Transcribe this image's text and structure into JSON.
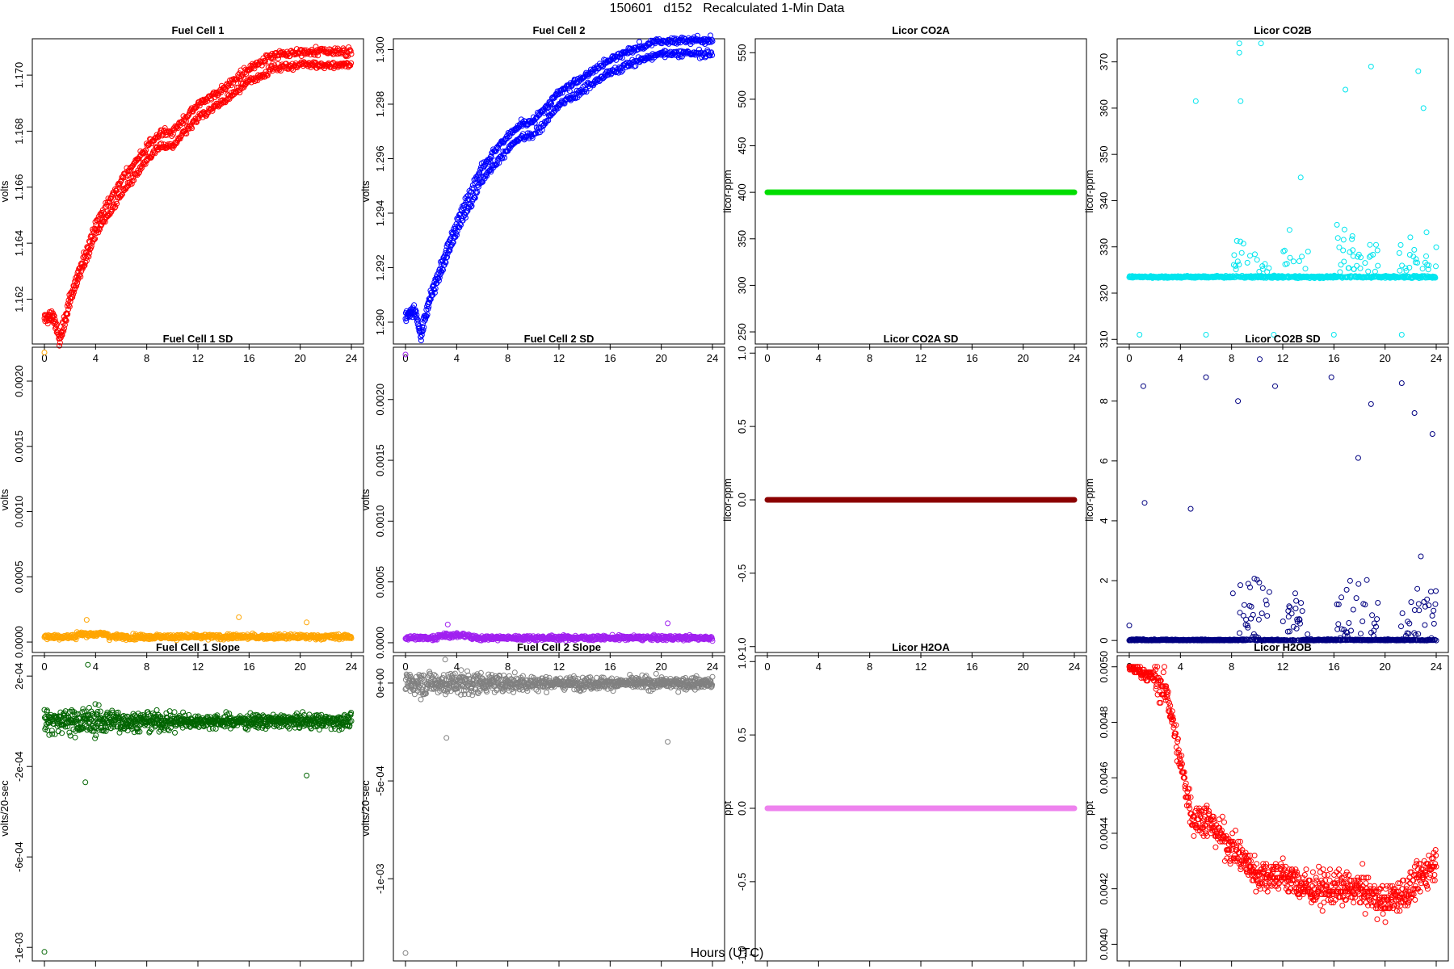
{
  "figure": {
    "title": "150601   d152   Recalculated 1-Min Data",
    "xlabel": "Hours (UTC)"
  },
  "chart_data": [
    {
      "type": "scatter",
      "title": "Fuel Cell 1",
      "ylabel": "volts",
      "color": "#ff0000",
      "xlim": [
        0,
        24
      ],
      "xticks": [
        "0",
        "4",
        "8",
        "12",
        "16",
        "20",
        "24"
      ],
      "ylim": [
        1.1604,
        1.1713
      ],
      "yticks": [
        "1.162",
        "1.164",
        "1.166",
        "1.168",
        "1.170"
      ],
      "series": {
        "model": "band",
        "x": [
          0,
          0.7,
          1.2,
          2,
          4,
          6,
          8,
          9,
          10,
          12,
          14,
          16,
          18,
          20,
          24
        ],
        "y": [
          1.1613,
          1.1614,
          1.1605,
          1.162,
          1.1645,
          1.166,
          1.1672,
          1.1677,
          1.1677,
          1.1687,
          1.1693,
          1.17,
          1.1705,
          1.1706,
          1.1706
        ],
        "spread": 0.0008
      }
    },
    {
      "type": "scatter",
      "title": "Fuel Cell 2",
      "ylabel": "volts",
      "color": "#0000ff",
      "xlim": [
        0,
        24
      ],
      "xticks": [
        "0",
        "4",
        "8",
        "12",
        "16",
        "20",
        "24"
      ],
      "ylim": [
        1.2892,
        1.3004
      ],
      "yticks": [
        "1.290",
        "1.292",
        "1.294",
        "1.296",
        "1.298",
        "1.300"
      ],
      "series": {
        "model": "band",
        "x": [
          0,
          0.7,
          1.2,
          2,
          4,
          6,
          8,
          9,
          10,
          12,
          14,
          16,
          18,
          20,
          24
        ],
        "y": [
          1.2902,
          1.2905,
          1.2895,
          1.291,
          1.2935,
          1.2955,
          1.2966,
          1.297,
          1.2971,
          1.2982,
          1.2988,
          1.2994,
          1.2998,
          1.3001,
          1.3001
        ],
        "spread": 0.0008
      }
    },
    {
      "type": "scatter",
      "title": "Licor CO2A",
      "ylabel": "licor-ppm",
      "color": "#00dd00",
      "xlim": [
        0,
        24
      ],
      "xticks": [
        "0",
        "4",
        "8",
        "12",
        "16",
        "20",
        "24"
      ],
      "ylim": [
        237,
        565
      ],
      "yticks": [
        "250",
        "300",
        "350",
        "400",
        "450",
        "500",
        "550"
      ],
      "series": {
        "model": "flat",
        "value": 400
      }
    },
    {
      "type": "scatter",
      "title": "Licor CO2B",
      "ylabel": "licor-ppm",
      "color": "#00e5ee",
      "xlim": [
        0,
        24
      ],
      "xticks": [
        "0",
        "4",
        "8",
        "12",
        "16",
        "20",
        "24"
      ],
      "ylim": [
        309,
        375
      ],
      "yticks": [
        "310",
        "320",
        "330",
        "340",
        "350",
        "360",
        "370"
      ],
      "series": {
        "model": "noisy",
        "base": 323.5,
        "spikes": [
          [
            8.6,
            374
          ],
          [
            8.6,
            372
          ],
          [
            10.3,
            374
          ],
          [
            5.2,
            361.5
          ],
          [
            8.7,
            361.5
          ],
          [
            13.4,
            345
          ],
          [
            16.9,
            364
          ],
          [
            18.9,
            369
          ],
          [
            22.6,
            368
          ],
          [
            23,
            360
          ],
          [
            0.8,
            311
          ],
          [
            6,
            311
          ],
          [
            11.3,
            311
          ],
          [
            16,
            311
          ],
          [
            21.3,
            311
          ]
        ],
        "busy": [
          [
            8,
            11
          ],
          [
            12,
            14
          ],
          [
            16,
            19.5
          ],
          [
            21,
            24
          ]
        ]
      }
    },
    {
      "type": "scatter",
      "title": "Fuel Cell 1 SD",
      "ylabel": "volts",
      "color": "#ffa500",
      "xlim": [
        0,
        24
      ],
      "xticks": [
        "0",
        "4",
        "8",
        "12",
        "16",
        "20",
        "24"
      ],
      "ylim": [
        -8e-05,
        0.00226
      ],
      "yticks": [
        "0.0000",
        "0.0005",
        "0.0010",
        "0.0015",
        "0.0020"
      ],
      "series": {
        "model": "sd",
        "base": 4e-05,
        "noise": 2e-05,
        "outliers": [
          [
            0,
            0.00222
          ],
          [
            3.3,
            0.00017
          ],
          [
            15.2,
            0.00019
          ],
          [
            20.5,
            0.00015
          ]
        ]
      }
    },
    {
      "type": "scatter",
      "title": "Fuel Cell 2 SD",
      "ylabel": "volts",
      "color": "#a020f0",
      "xlim": [
        0,
        24
      ],
      "xticks": [
        "0",
        "4",
        "8",
        "12",
        "16",
        "20",
        "24"
      ],
      "ylim": [
        -8e-05,
        0.00243
      ],
      "yticks": [
        "0.0000",
        "0.0005",
        "0.0010",
        "0.0015",
        "0.0020"
      ],
      "series": {
        "model": "sd",
        "base": 4e-05,
        "noise": 2e-05,
        "outliers": [
          [
            0,
            0.00237
          ],
          [
            3.3,
            0.00015
          ],
          [
            20.5,
            0.00016
          ]
        ]
      }
    },
    {
      "type": "scatter",
      "title": "Licor CO2A SD",
      "ylabel": "licor-ppm",
      "color": "#8b0000",
      "xlim": [
        0,
        24
      ],
      "xticks": [
        "0",
        "4",
        "8",
        "12",
        "16",
        "20",
        "24"
      ],
      "ylim": [
        -1.04,
        1.04
      ],
      "yticks": [
        "-1.0",
        "-0.5",
        "0.0",
        "0.5",
        "1.0"
      ],
      "series": {
        "model": "flat",
        "value": 0
      }
    },
    {
      "type": "scatter",
      "title": "Licor CO2B SD",
      "ylabel": "licor-ppm",
      "color": "#000080",
      "xlim": [
        0,
        24
      ],
      "xticks": [
        "0",
        "4",
        "8",
        "12",
        "16",
        "20",
        "24"
      ],
      "ylim": [
        -0.4,
        9.8
      ],
      "yticks": [
        "0",
        "2",
        "4",
        "6",
        "8"
      ],
      "series": {
        "model": "sdspikes",
        "base": 0.05,
        "spikes": [
          [
            10.2,
            9.4
          ],
          [
            1.1,
            8.5
          ],
          [
            6,
            8.8
          ],
          [
            11.4,
            8.5
          ],
          [
            15.8,
            8.8
          ],
          [
            21.3,
            8.6
          ],
          [
            18.9,
            7.9
          ],
          [
            8.5,
            8
          ],
          [
            22.3,
            7.6
          ],
          [
            4.8,
            4.4
          ],
          [
            1.2,
            4.6
          ],
          [
            23.7,
            6.9
          ],
          [
            17.9,
            6.1
          ],
          [
            0,
            0.5
          ]
        ],
        "busy": [
          [
            8,
            11
          ],
          [
            12,
            14
          ],
          [
            16,
            19.5
          ],
          [
            21,
            24
          ]
        ]
      }
    },
    {
      "type": "scatter",
      "title": "Fuel Cell 1 Slope",
      "ylabel": "volts/20-sec",
      "color": "#006400",
      "xlim": [
        0,
        24
      ],
      "xticks": [
        "0",
        "4",
        "8",
        "12",
        "16",
        "20",
        "24"
      ],
      "ylim": [
        -0.00106,
        0.00029
      ],
      "yticks": [
        "-1e-03",
        "-6e-04",
        "-2e-04",
        "2e-04"
      ],
      "series": {
        "model": "slope",
        "noise": 4e-05,
        "outliers": [
          [
            0,
            -0.00102
          ],
          [
            3.2,
            -0.00027
          ],
          [
            20.5,
            -0.00024
          ],
          [
            3.4,
            0.00025
          ]
        ]
      }
    },
    {
      "type": "scatter",
      "title": "Fuel Cell 2 Slope",
      "ylabel": "volts/20-sec",
      "color": "#808080",
      "xlim": [
        0,
        24
      ],
      "xticks": [
        "0",
        "4",
        "8",
        "12",
        "16",
        "20",
        "24"
      ],
      "ylim": [
        -0.00142,
        0.00014
      ],
      "yticks": [
        "-1e-03",
        "-5e-04",
        "0e+00"
      ],
      "series": {
        "model": "slope",
        "noise": 4e-05,
        "outliers": [
          [
            0,
            -0.00138
          ],
          [
            20.5,
            -0.0003
          ],
          [
            3.2,
            -0.00028
          ],
          [
            3.1,
            0.00012
          ]
        ]
      }
    },
    {
      "type": "scatter",
      "title": "Licor H2OA",
      "ylabel": "ppt",
      "color": "#ee82ee",
      "xlim": [
        0,
        24
      ],
      "xticks": [
        "0",
        "4",
        "8",
        "12",
        "16",
        "20",
        "24"
      ],
      "ylim": [
        -1.04,
        1.04
      ],
      "yticks": [
        "-1.0",
        "-0.5",
        "0.0",
        "0.5",
        "1.0"
      ],
      "series": {
        "model": "flat",
        "value": 0
      }
    },
    {
      "type": "scatter",
      "title": "Licor H2OB",
      "ylabel": "ppt",
      "color": "#ff0000",
      "xlim": [
        0,
        24
      ],
      "xticks": [
        "0",
        "4",
        "8",
        "12",
        "16",
        "20",
        "24"
      ],
      "ylim": [
        0.00394,
        0.00504
      ],
      "yticks": [
        "0.0040",
        "0.0042",
        "0.0044",
        "0.0046",
        "0.0048",
        "0.0050"
      ],
      "series": {
        "model": "quantized",
        "step": 1e-05,
        "x": [
          0,
          1,
          2,
          3,
          4,
          5,
          6,
          8,
          10,
          12,
          14,
          16,
          18,
          20,
          22,
          24
        ],
        "center": [
          0.005,
          0.00498,
          0.00496,
          0.0049,
          0.00465,
          0.00445,
          0.00445,
          0.00435,
          0.00425,
          0.00425,
          0.0042,
          0.0042,
          0.0042,
          0.00415,
          0.0042,
          0.0043
        ],
        "spread": 0.00014
      }
    }
  ]
}
